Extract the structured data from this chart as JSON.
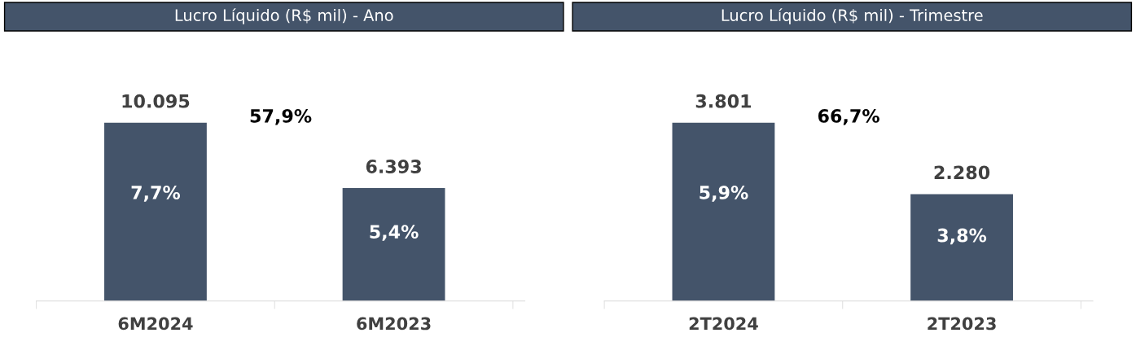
{
  "chart_data": [
    {
      "type": "bar",
      "title": "Lucro Líquido (R$ mil) - Ano",
      "categories": [
        "6M2024",
        "6M2023"
      ],
      "values": [
        10095,
        6393
      ],
      "value_labels": [
        "10.095",
        "6.393"
      ],
      "color": "#44546a",
      "annotations": [
        "57,9%",
        "7,7%",
        "5,4%"
      ]
    },
    {
      "type": "bar",
      "title": "Lucro Líquido (R$ mil) - Trimestre",
      "categories": [
        "2T2024",
        "2T2023"
      ],
      "values": [
        3801,
        2280
      ],
      "value_labels": [
        "3.801",
        "2.280"
      ],
      "color": "#44546a",
      "annotations": [
        "66,7%",
        "5,9%",
        "3,8%"
      ]
    }
  ]
}
